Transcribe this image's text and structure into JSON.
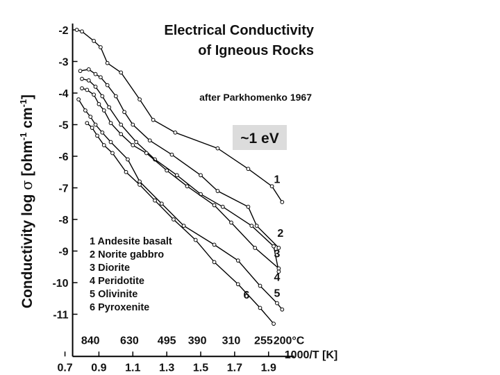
{
  "chart_data": {
    "type": "line",
    "title_lines": [
      "Electrical Conductivity",
      "of Igneous Rocks"
    ],
    "subtitle": "after Parkhomenko 1967",
    "annotation": "~1 eV",
    "annotation_bg": "#dcdcdc",
    "ylabel": {
      "pre": "Conductivity log ",
      "sym": "σ",
      "mid": "  [ohm",
      "sup1": "-1",
      "mid2": " cm",
      "sup2": "-1",
      "post": "]"
    },
    "xlabel": "1000/T [K]",
    "xlim": [
      0.7,
      2.1
    ],
    "ylim": [
      -11.5,
      -1.8
    ],
    "x_ticks": [
      {
        "x": 0.7,
        "label": "0.7"
      },
      {
        "x": 0.9,
        "label": "0.9"
      },
      {
        "x": 1.1,
        "label": "1.1"
      },
      {
        "x": 1.3,
        "label": "1.3"
      },
      {
        "x": 1.5,
        "label": "1.5"
      },
      {
        "x": 1.7,
        "label": "1.7"
      },
      {
        "x": 1.9,
        "label": "1.9"
      }
    ],
    "y_ticks": [
      -2,
      -3,
      -4,
      -5,
      -6,
      -7,
      -8,
      -9,
      -10,
      -11
    ],
    "y_tick_labels": [
      "-2",
      "-3",
      "-4",
      "-5",
      "-6",
      "-7",
      "-8",
      "-9",
      "-10",
      "-11"
    ],
    "temp_labels": [
      {
        "x": 0.85,
        "label": "840"
      },
      {
        "x": 1.08,
        "label": "630"
      },
      {
        "x": 1.3,
        "label": "495"
      },
      {
        "x": 1.48,
        "label": "390"
      },
      {
        "x": 1.68,
        "label": "310"
      },
      {
        "x": 1.87,
        "label": "255"
      },
      {
        "x": 2.02,
        "label": "200°C"
      }
    ],
    "series": [
      {
        "name": "Andesite basalt",
        "label": "1",
        "label_pos": [
          1.95,
          -6.85
        ],
        "points": [
          [
            0.77,
            -2.0
          ],
          [
            0.8,
            -2.05
          ],
          [
            0.87,
            -2.35
          ],
          [
            0.91,
            -2.55
          ],
          [
            0.95,
            -3.05
          ],
          [
            1.03,
            -3.35
          ],
          [
            1.14,
            -4.2
          ],
          [
            1.22,
            -4.85
          ],
          [
            1.35,
            -5.25
          ],
          [
            1.6,
            -5.75
          ],
          [
            1.78,
            -6.4
          ],
          [
            1.92,
            -6.95
          ],
          [
            1.98,
            -7.45
          ]
        ]
      },
      {
        "name": "Norite gabbro",
        "label": "2",
        "label_pos": [
          1.97,
          -8.55
        ],
        "points": [
          [
            0.79,
            -3.3
          ],
          [
            0.84,
            -3.25
          ],
          [
            0.88,
            -3.4
          ],
          [
            0.91,
            -3.5
          ],
          [
            0.95,
            -3.75
          ],
          [
            1.0,
            -4.1
          ],
          [
            1.05,
            -4.6
          ],
          [
            1.1,
            -5.0
          ],
          [
            1.2,
            -5.5
          ],
          [
            1.33,
            -5.95
          ],
          [
            1.5,
            -6.6
          ],
          [
            1.6,
            -7.1
          ],
          [
            1.78,
            -7.6
          ],
          [
            1.83,
            -8.2
          ],
          [
            1.96,
            -8.9
          ]
        ]
      },
      {
        "name": "Diorite",
        "label": "3",
        "label_pos": [
          1.95,
          -9.2
        ],
        "points": [
          [
            0.8,
            -3.55
          ],
          [
            0.84,
            -3.6
          ],
          [
            0.88,
            -3.8
          ],
          [
            0.92,
            -4.1
          ],
          [
            0.96,
            -4.45
          ],
          [
            1.03,
            -5.0
          ],
          [
            1.12,
            -5.55
          ],
          [
            1.23,
            -6.1
          ],
          [
            1.36,
            -6.6
          ],
          [
            1.5,
            -7.2
          ],
          [
            1.63,
            -7.6
          ],
          [
            1.8,
            -8.2
          ],
          [
            1.93,
            -8.85
          ],
          [
            1.96,
            -9.65
          ]
        ]
      },
      {
        "name": "Peridotite",
        "label": "4",
        "label_pos": [
          1.95,
          -9.95
        ],
        "points": [
          [
            0.8,
            -3.85
          ],
          [
            0.83,
            -3.9
          ],
          [
            0.87,
            -4.05
          ],
          [
            0.9,
            -4.35
          ],
          [
            0.93,
            -4.55
          ],
          [
            0.97,
            -4.95
          ],
          [
            1.03,
            -5.3
          ],
          [
            1.1,
            -5.65
          ],
          [
            1.18,
            -5.9
          ],
          [
            1.3,
            -6.45
          ],
          [
            1.42,
            -6.95
          ],
          [
            1.58,
            -7.55
          ],
          [
            1.68,
            -8.1
          ],
          [
            1.82,
            -8.9
          ],
          [
            1.96,
            -9.55
          ]
        ]
      },
      {
        "name": "Olivinite",
        "label": "5",
        "label_pos": [
          1.95,
          -10.45
        ],
        "points": [
          [
            0.78,
            -4.2
          ],
          [
            0.82,
            -4.55
          ],
          [
            0.85,
            -4.75
          ],
          [
            0.88,
            -5.0
          ],
          [
            0.92,
            -5.25
          ],
          [
            0.97,
            -5.55
          ],
          [
            1.07,
            -6.1
          ],
          [
            1.14,
            -6.8
          ],
          [
            1.27,
            -7.5
          ],
          [
            1.4,
            -8.2
          ],
          [
            1.58,
            -8.8
          ],
          [
            1.72,
            -9.3
          ],
          [
            1.85,
            -10.1
          ],
          [
            1.95,
            -10.65
          ],
          [
            1.98,
            -10.85
          ]
        ]
      },
      {
        "name": "Pyroxenite",
        "label": "6",
        "label_pos": [
          1.77,
          -10.5
        ],
        "points": [
          [
            0.83,
            -4.95
          ],
          [
            0.86,
            -5.1
          ],
          [
            0.89,
            -5.35
          ],
          [
            0.93,
            -5.65
          ],
          [
            0.98,
            -5.9
          ],
          [
            1.06,
            -6.5
          ],
          [
            1.14,
            -6.9
          ],
          [
            1.23,
            -7.4
          ],
          [
            1.34,
            -8.0
          ],
          [
            1.47,
            -8.65
          ],
          [
            1.58,
            -9.35
          ],
          [
            1.72,
            -10.05
          ],
          [
            1.85,
            -10.8
          ],
          [
            1.93,
            -11.3
          ]
        ]
      }
    ],
    "legend": [
      "1 Andesite basalt",
      "2 Norite gabbro",
      "3 Diorite",
      "4 Peridotite",
      "5 Olivinite",
      "6 Pyroxenite"
    ],
    "legend_placement": "bottom-left",
    "grid": false
  }
}
